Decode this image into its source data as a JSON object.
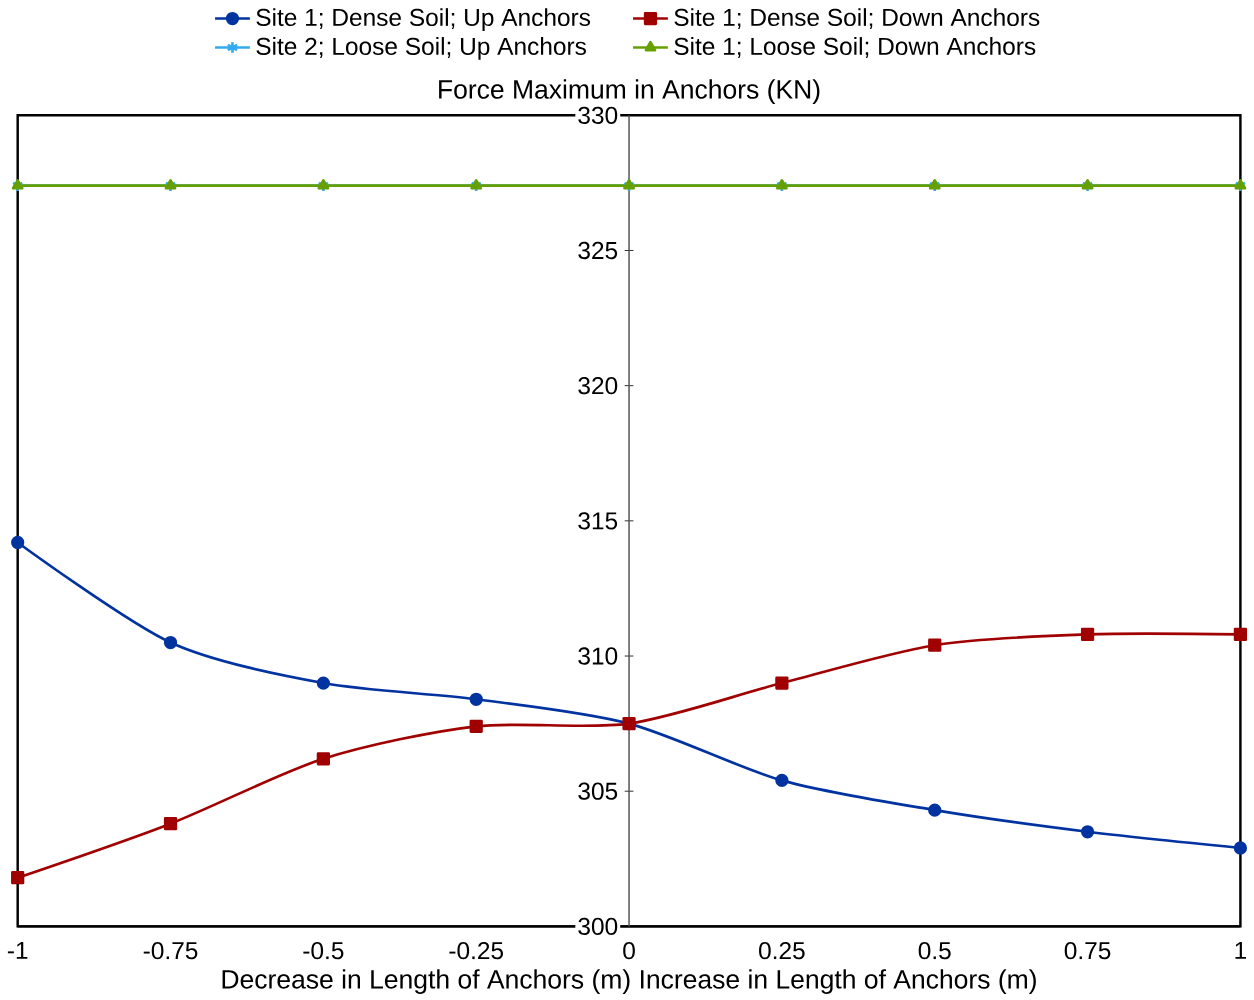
{
  "chart_data": {
    "type": "line",
    "title": "Force Maximum in Anchors (KN)",
    "xlabel": "Decrease in Length of Anchors (m)  Increase in Length of Anchors (m)",
    "x": [
      -1,
      -0.75,
      -0.5,
      -0.25,
      0,
      0.25,
      0.5,
      0.75,
      1
    ],
    "series": [
      {
        "name": "Site 1; Dense Soil; Up Anchors",
        "color": "#0033a0",
        "marker": "circle",
        "values": [
          314.2,
          310.5,
          309.0,
          308.4,
          307.5,
          305.4,
          304.3,
          303.5,
          302.9
        ]
      },
      {
        "name": "Site 1; Dense Soil; Down Anchors",
        "color": "#a00000",
        "marker": "square",
        "values": [
          301.8,
          303.8,
          306.2,
          307.4,
          307.5,
          309.0,
          310.4,
          310.8,
          310.8
        ]
      },
      {
        "name": "Site 2; Loose Soil; Up Anchors",
        "color": "#33aaee",
        "marker": "cross",
        "values": [
          327.4,
          327.4,
          327.4,
          327.4,
          327.4,
          327.4,
          327.4,
          327.4,
          327.4
        ]
      },
      {
        "name": "Site 1; Loose Soil; Down Anchors",
        "color": "#66a000",
        "marker": "triangle",
        "values": [
          327.4,
          327.4,
          327.4,
          327.4,
          327.4,
          327.4,
          327.4,
          327.4,
          327.4
        ]
      }
    ],
    "xlim": [
      -1,
      1
    ],
    "ylim": [
      300,
      330
    ],
    "xticks": [
      -1,
      -0.75,
      -0.5,
      -0.25,
      0,
      0.25,
      0.5,
      0.75,
      1
    ],
    "yticks": [
      300,
      305,
      310,
      315,
      320,
      325,
      330
    ],
    "legend": "top",
    "line_style": "solid"
  }
}
